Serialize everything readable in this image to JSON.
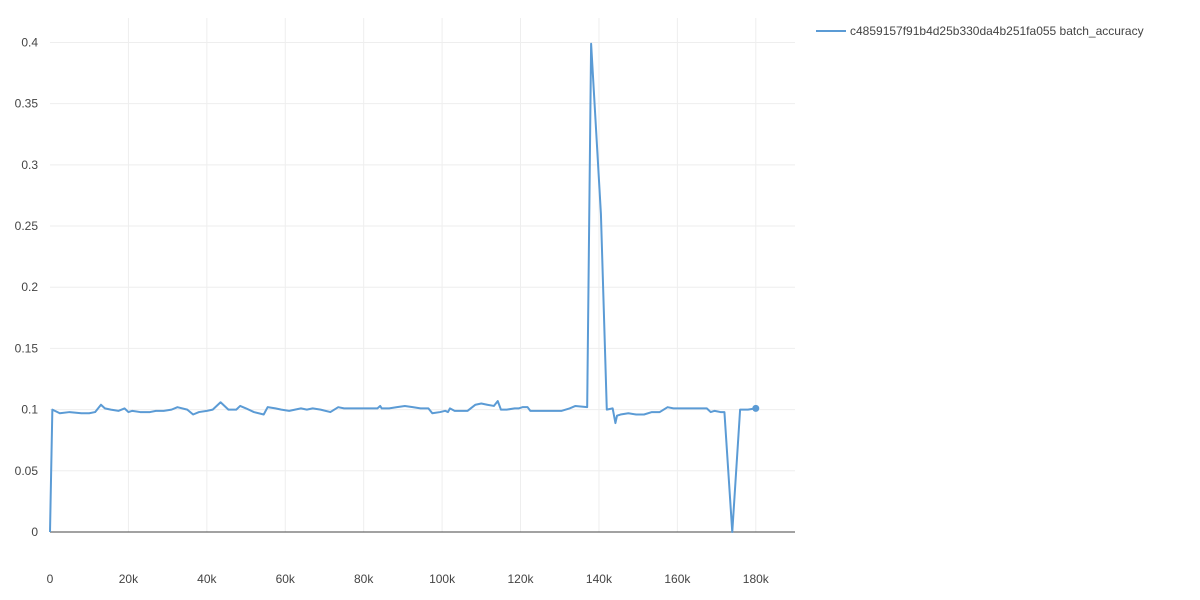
{
  "chart_data": {
    "type": "line",
    "title": "",
    "xlabel": "",
    "ylabel": "",
    "xlim": [
      0,
      190000
    ],
    "ylim": [
      0,
      0.42
    ],
    "grid": true,
    "legend_placement": "top-right",
    "x_ticks": [
      0,
      20000,
      40000,
      60000,
      80000,
      100000,
      120000,
      140000,
      160000,
      180000
    ],
    "x_tick_labels": [
      "0",
      "20k",
      "40k",
      "60k",
      "80k",
      "100k",
      "120k",
      "140k",
      "160k",
      "180k"
    ],
    "y_ticks": [
      0,
      0.05,
      0.1,
      0.15,
      0.2,
      0.25,
      0.3,
      0.35,
      0.4
    ],
    "y_tick_labels": [
      "0",
      "0.05",
      "0.1",
      "0.15",
      "0.2",
      "0.25",
      "0.3",
      "0.35",
      "0.4"
    ],
    "series": [
      {
        "name": "c4859157f91b4d25b330da4b251fa055 batch_accuracy",
        "color": "#5b9bd5",
        "x": [
          0,
          600,
          2500,
          5000,
          8000,
          10000,
          11500,
          13000,
          14000,
          15500,
          17500,
          19000,
          20000,
          21000,
          23000,
          25500,
          27000,
          29000,
          31000,
          32500,
          35000,
          36500,
          38000,
          40000,
          41500,
          43500,
          45500,
          47500,
          48500,
          50000,
          52000,
          54500,
          55500,
          57500,
          59000,
          61000,
          62500,
          64000,
          65500,
          67000,
          69000,
          71500,
          73500,
          75000,
          77000,
          79000,
          81500,
          83500,
          84200,
          84600,
          86500,
          88500,
          90500,
          92500,
          94500,
          96500,
          97500,
          99500,
          100800,
          101500,
          102000,
          103200,
          104500,
          106500,
          108500,
          110000,
          111500,
          113200,
          114200,
          115000,
          116500,
          118500,
          119500,
          120500,
          121800,
          122500,
          124500,
          126500,
          128500,
          130500,
          132500,
          134000,
          137000,
          138000,
          140500,
          142000,
          143500,
          144200,
          144600,
          145500,
          147500,
          149500,
          151500,
          153500,
          155500,
          157500,
          159000,
          161000,
          163000,
          165000,
          167500,
          168500,
          169500,
          171000,
          172000,
          174000,
          176000,
          178000,
          180000
        ],
        "values": [
          0.0,
          0.1,
          0.097,
          0.098,
          0.097,
          0.097,
          0.098,
          0.104,
          0.101,
          0.1,
          0.099,
          0.101,
          0.098,
          0.099,
          0.098,
          0.098,
          0.099,
          0.099,
          0.1,
          0.102,
          0.1,
          0.096,
          0.098,
          0.099,
          0.1,
          0.106,
          0.1,
          0.1,
          0.103,
          0.101,
          0.098,
          0.096,
          0.102,
          0.101,
          0.1,
          0.099,
          0.1,
          0.101,
          0.1,
          0.101,
          0.1,
          0.098,
          0.102,
          0.101,
          0.101,
          0.101,
          0.101,
          0.101,
          0.103,
          0.101,
          0.101,
          0.102,
          0.103,
          0.102,
          0.101,
          0.101,
          0.097,
          0.098,
          0.099,
          0.098,
          0.101,
          0.099,
          0.099,
          0.099,
          0.104,
          0.105,
          0.104,
          0.103,
          0.107,
          0.1,
          0.1,
          0.101,
          0.101,
          0.102,
          0.102,
          0.099,
          0.099,
          0.099,
          0.099,
          0.099,
          0.101,
          0.103,
          0.102,
          0.399,
          0.26,
          0.1,
          0.101,
          0.089,
          0.095,
          0.096,
          0.097,
          0.096,
          0.096,
          0.098,
          0.098,
          0.102,
          0.101,
          0.101,
          0.101,
          0.101,
          0.101,
          0.098,
          0.099,
          0.098,
          0.098,
          0.0,
          0.1,
          0.1,
          0.101
        ]
      }
    ]
  }
}
